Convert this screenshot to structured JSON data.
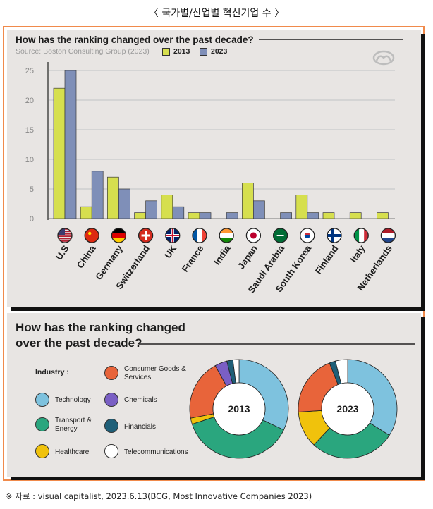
{
  "page_title": "〈 국가별/산업별 혁신기업 수 〉",
  "footnote": "※ 자료 : visual capitalist, 2023.6.13(BCG, Most Innovative Companies 2023)",
  "colors": {
    "c2013": "#d6df4e",
    "c2023": "#7f8fb8",
    "frame": "#f08a4b",
    "panel": "#e8e5e3",
    "tech": "#7ec2de",
    "transport": "#2aa67e",
    "health": "#f0c20c",
    "consumer": "#e8643a",
    "chemicals": "#7a5fc4",
    "financials": "#1f5f78",
    "telecom": "#ffffff"
  },
  "chart_data": [
    {
      "type": "bar",
      "title": "How has the ranking changed over the past decade?",
      "source": "Source: Boston Consulting Group (2023)",
      "categories": [
        "U.S",
        "China",
        "Germany",
        "Switzerland",
        "UK",
        "France",
        "India",
        "Japan",
        "Saudi Arabia",
        "South Korea",
        "Finland",
        "Italy",
        "Netherlands"
      ],
      "series": [
        {
          "name": "2013",
          "values": [
            22,
            2,
            7,
            1,
            4,
            1,
            0,
            6,
            0,
            4,
            1,
            1,
            1
          ]
        },
        {
          "name": "2023",
          "values": [
            25,
            8,
            5,
            3,
            2,
            1,
            1,
            3,
            1,
            1,
            0,
            0,
            0
          ]
        }
      ],
      "yticks": [
        0,
        5,
        10,
        15,
        20,
        25
      ],
      "ylim": [
        0,
        26
      ],
      "xlabel": "",
      "ylabel": ""
    },
    {
      "type": "pie",
      "title": "How has the ranking changed over the past decade?",
      "legend_title": "Industry :",
      "categories": [
        "Technology",
        "Transport & Energy",
        "Healthcare",
        "Consumer Goods & Services",
        "Chemicals",
        "Financials",
        "Telecommunications"
      ],
      "series": [
        {
          "name": "2013",
          "values": [
            32,
            38,
            2,
            20,
            4,
            2,
            2
          ]
        },
        {
          "name": "2023",
          "values": [
            34,
            28,
            12,
            20,
            0,
            2,
            4
          ]
        }
      ]
    }
  ]
}
